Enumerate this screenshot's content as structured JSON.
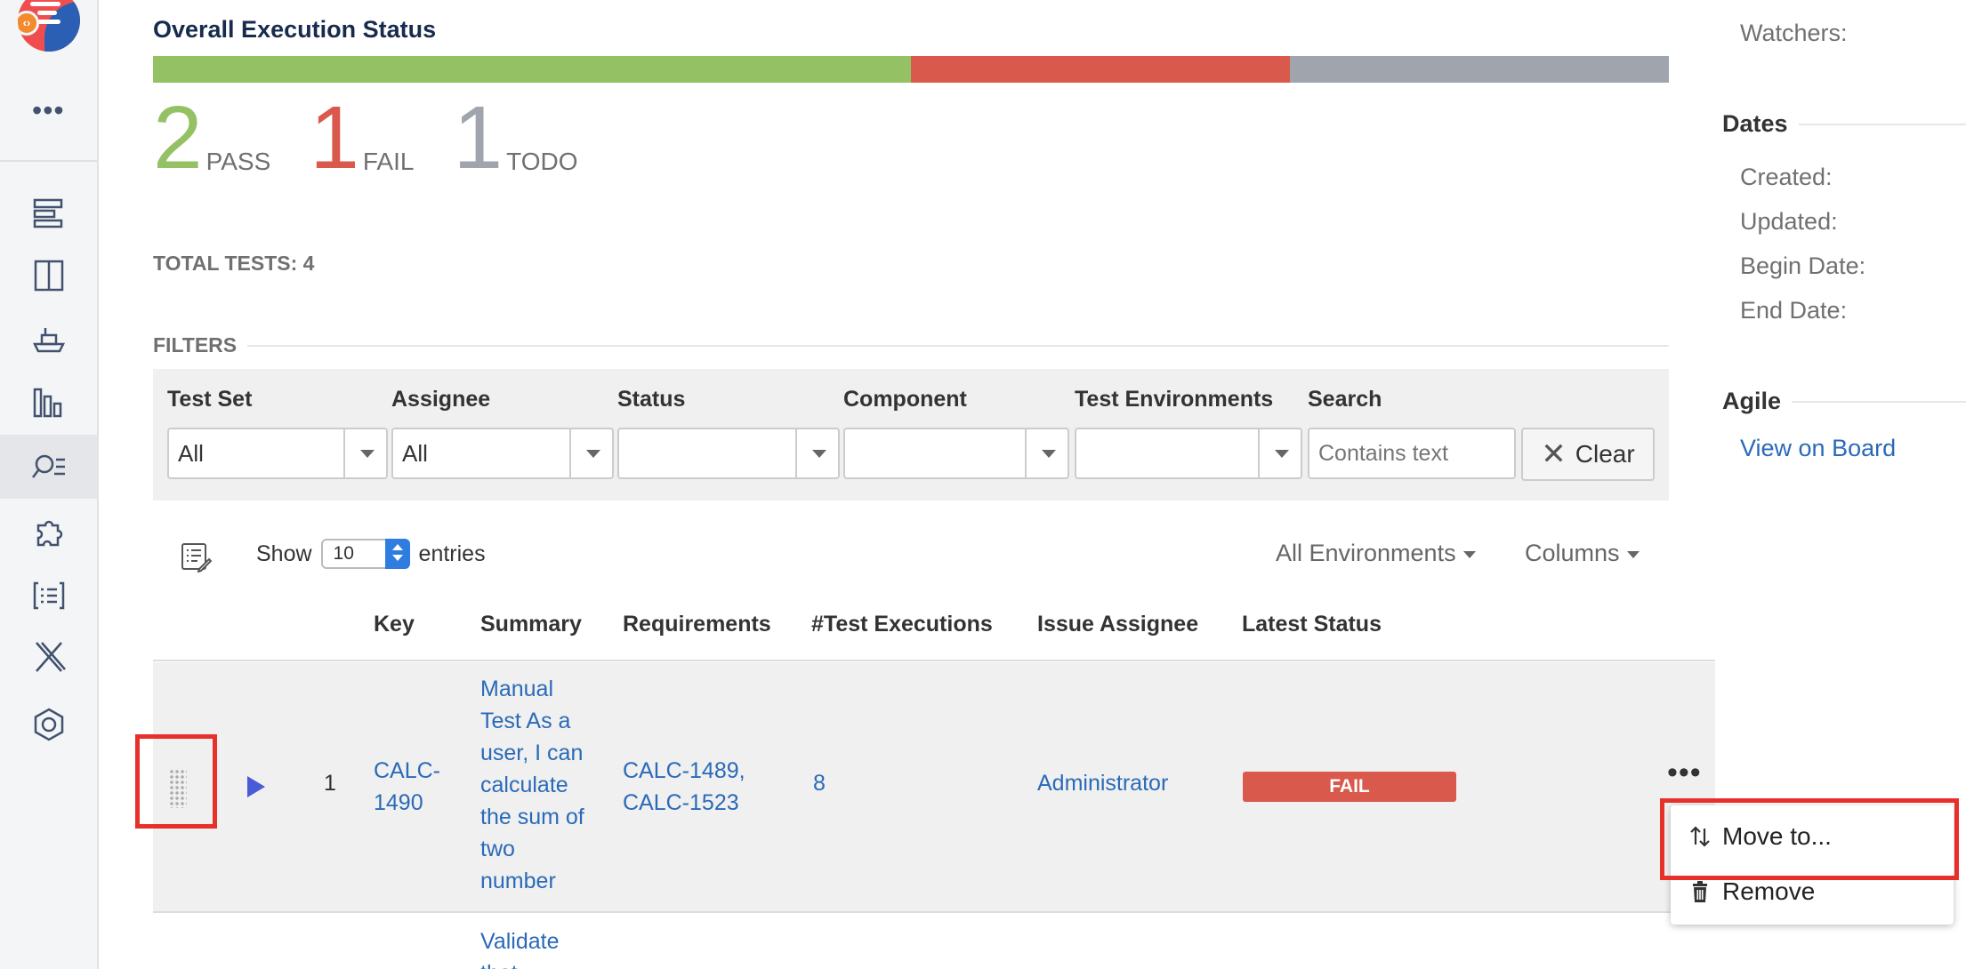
{
  "colors": {
    "pass": "#94c163",
    "fail": "#d9594c",
    "todo": "#a0a4ad",
    "link": "#2a6ab8",
    "highlight": "#e8302a"
  },
  "sidebar": {
    "icons": [
      "app-logo-icon",
      "more-icon",
      "test-plan-icon",
      "board-icon",
      "ship-icon",
      "reports-icon",
      "search-list-icon",
      "puzzle-icon",
      "list-icon",
      "x-icon",
      "settings-hex-icon"
    ],
    "more_label": "•••"
  },
  "status": {
    "title": "Overall Execution Status",
    "progress": {
      "pass": 0.5,
      "fail": 0.25,
      "todo": 0.25
    },
    "pass_count": "2",
    "pass_label": "PASS",
    "fail_count": "1",
    "fail_label": "FAIL",
    "todo_count": "1",
    "todo_label": "TODO",
    "total": "TOTAL TESTS: 4"
  },
  "filters": {
    "header": "FILTERS",
    "test_set_label": "Test Set",
    "test_set_value": "All",
    "assignee_label": "Assignee",
    "assignee_value": "All",
    "status_label": "Status",
    "status_value": "",
    "component_label": "Component",
    "component_value": "",
    "env_label": "Test Environments",
    "env_value": "",
    "search_label": "Search",
    "search_placeholder": "Contains text",
    "clear_label": "Clear"
  },
  "table_controls": {
    "show_label": "Show",
    "page_length": "10",
    "entries_label": "entries",
    "env_dropdown": "All Environments",
    "columns_dropdown": "Columns"
  },
  "table": {
    "headers": [
      "Key",
      "Summary",
      "Requirements",
      "#Test Executions",
      "Issue Assignee",
      "Latest Status"
    ],
    "rows": [
      {
        "rank": "1",
        "key": "CALC-1490",
        "summary": "Manual Test As a user, I can calculate the sum of two number",
        "requirements": "CALC-1489, CALC-1523",
        "executions": "8",
        "assignee": "Administrator",
        "status": "FAIL"
      },
      {
        "summary": "Validate that"
      }
    ]
  },
  "context_menu": {
    "move_label": "Move to...",
    "remove_label": "Remove"
  },
  "right_panel": {
    "watchers_label": "Watchers:",
    "dates_header": "Dates",
    "created_label": "Created:",
    "updated_label": "Updated:",
    "begin_label": "Begin Date:",
    "end_label": "End Date:",
    "agile_header": "Agile",
    "board_link": "View on Board"
  }
}
